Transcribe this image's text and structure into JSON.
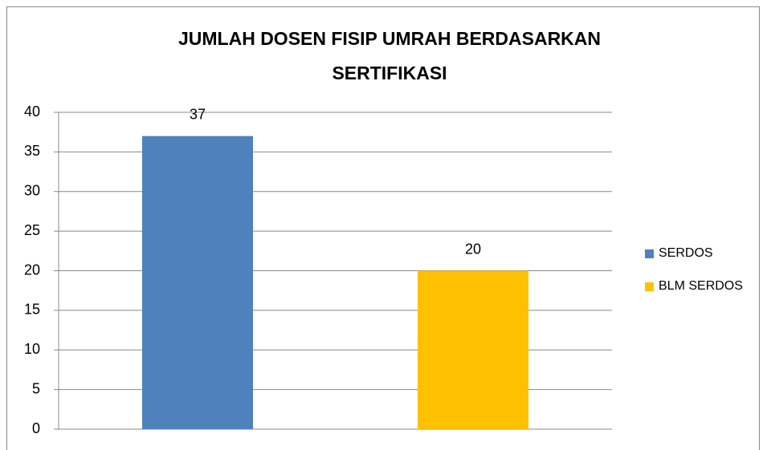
{
  "chart_data": {
    "type": "bar",
    "title": [
      "JUMLAH DOSEN FISIP UMRAH BERDASARKAN",
      "SERTIFIKASI"
    ],
    "categories": [
      null
    ],
    "series": [
      {
        "name": "SERDOS",
        "color": "#4f81bd",
        "values": [
          37
        ]
      },
      {
        "name": "BLM SERDOS",
        "color": "#ffc000",
        "values": [
          20
        ]
      }
    ],
    "ylim": [
      0,
      40
    ],
    "yticks": [
      0,
      5,
      10,
      15,
      20,
      25,
      30,
      35,
      40
    ],
    "grid": true,
    "legend": "right"
  }
}
